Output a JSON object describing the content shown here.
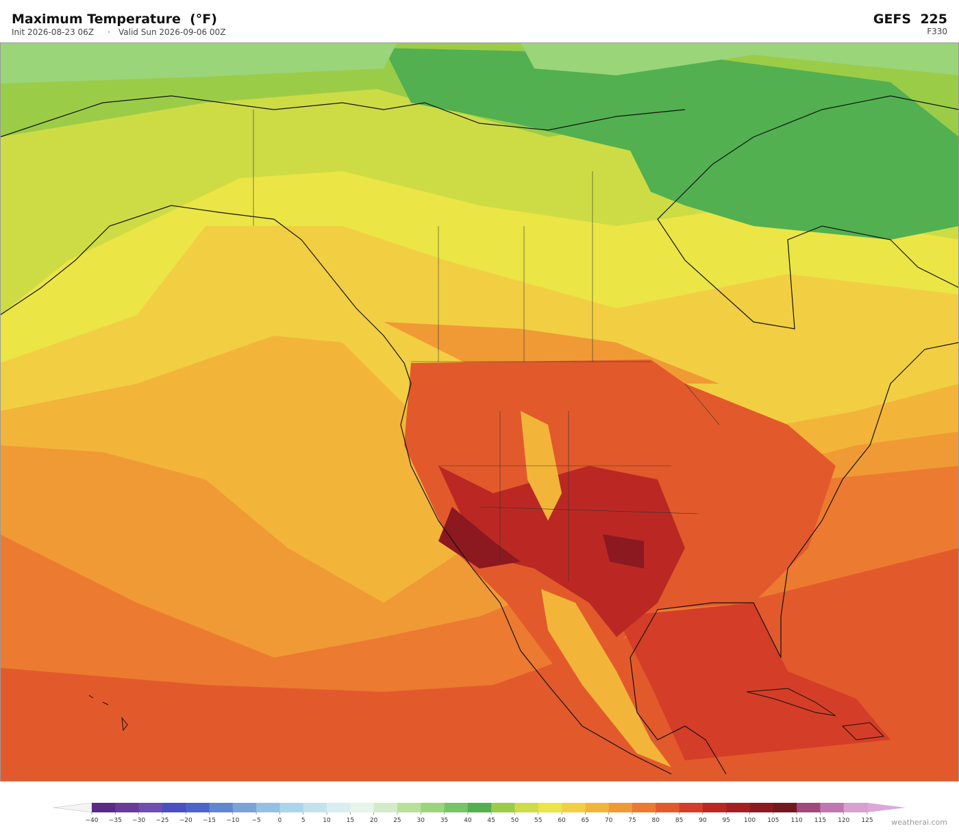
{
  "header": {
    "title": "Maximum Temperature  (°F)",
    "init": "Init 2026-08-23 06Z",
    "valid": "Valid Sun 2026-09-06 00Z",
    "model": "GEFS  225",
    "forecast_hour": "F330"
  },
  "colorbar": {
    "ticks": [
      {
        "value": -40,
        "label": "−40"
      },
      {
        "value": -35,
        "label": "−35"
      },
      {
        "value": -30,
        "label": "−30"
      },
      {
        "value": -25,
        "label": "−25"
      },
      {
        "value": -20,
        "label": "−20"
      },
      {
        "value": -15,
        "label": "−15"
      },
      {
        "value": -10,
        "label": "−10"
      },
      {
        "value": -5,
        "label": "−5"
      },
      0,
      5,
      10,
      15,
      20,
      25,
      30,
      35,
      40,
      45,
      50,
      55,
      60,
      65,
      70,
      75,
      80,
      85,
      90,
      95,
      100,
      105,
      110,
      115,
      120,
      125
    ],
    "colors": [
      "#5b2a86",
      "#6a3a9a",
      "#6d4fb0",
      "#4a4fc4",
      "#4c63cc",
      "#6087d0",
      "#7aa3d8",
      "#95bfe3",
      "#acd4ea",
      "#c4e2ee",
      "#d9eef0",
      "#e6f4ea",
      "#d3ebc8",
      "#b8e09a",
      "#9ad57a",
      "#77c466",
      "#52b050",
      "#9bcc48",
      "#cddc45",
      "#ebe545",
      "#f2cf42",
      "#f2b53a",
      "#f09a35",
      "#ec7a30",
      "#e25a2b",
      "#d43d27",
      "#bb2823",
      "#a51f22",
      "#8c1820",
      "#731820",
      "#a2487a",
      "#c076b0",
      "#d6a0cf"
    ],
    "under_color": "#f4f4f4",
    "over_color": "#dba9d8"
  },
  "footer": {
    "watermark": "weatherai.com"
  }
}
